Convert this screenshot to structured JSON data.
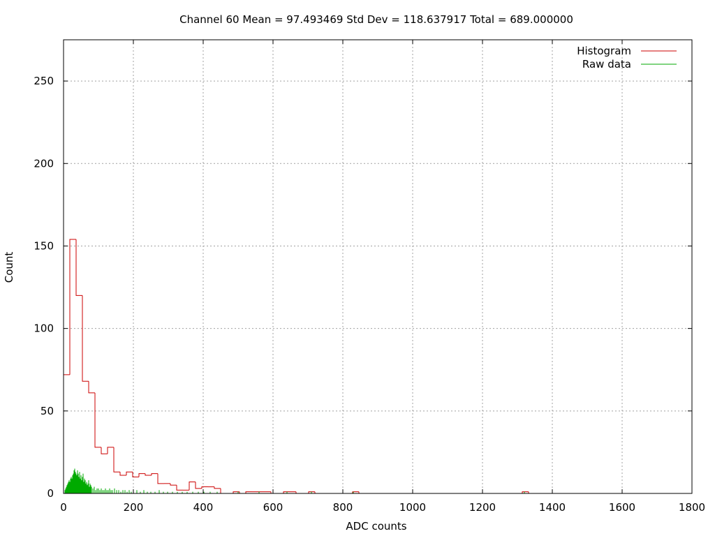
{
  "chart_data": {
    "type": "line",
    "title": "Channel 60  Mean = 97.493469  Std Dev = 118.637917  Total = 689.000000",
    "xlabel": "ADC counts",
    "ylabel": "Count",
    "xlim": [
      0,
      1800
    ],
    "ylim": [
      0,
      275
    ],
    "xticks": [
      0,
      200,
      400,
      600,
      800,
      1000,
      1200,
      1400,
      1600,
      1800
    ],
    "yticks": [
      0,
      50,
      100,
      150,
      200,
      250
    ],
    "grid": true,
    "legend_position": "top-right",
    "series": [
      {
        "name": "Histogram",
        "color": "#cc0000",
        "style": "step",
        "bin_width": 18,
        "bin_starts": [
          0,
          18,
          36,
          54,
          72,
          90,
          108,
          126,
          144,
          162,
          180,
          198,
          216,
          234,
          252,
          270,
          288,
          306,
          324,
          342,
          360,
          378,
          396,
          414,
          432,
          450,
          468,
          486,
          504,
          522,
          540,
          558,
          576,
          594,
          612,
          630,
          648,
          666,
          684,
          702,
          720,
          738,
          756,
          774,
          792,
          810,
          828,
          846,
          1314,
          1332
        ],
        "values": [
          72,
          154,
          120,
          68,
          61,
          28,
          24,
          28,
          13,
          11,
          13,
          10,
          12,
          11,
          12,
          6,
          6,
          5,
          2,
          2,
          7,
          3,
          4,
          4,
          3,
          0,
          0,
          1,
          0,
          1,
          1,
          1,
          1,
          0,
          0,
          1,
          1,
          0,
          0,
          1,
          0,
          0,
          0,
          0,
          0,
          0,
          1,
          0,
          1,
          0
        ]
      },
      {
        "name": "Raw data",
        "color": "#00aa00",
        "style": "impulses",
        "x": [
          4,
          6,
          8,
          10,
          12,
          14,
          16,
          18,
          20,
          22,
          24,
          26,
          28,
          30,
          32,
          34,
          36,
          38,
          40,
          42,
          44,
          46,
          48,
          50,
          52,
          54,
          56,
          58,
          60,
          62,
          64,
          66,
          68,
          70,
          72,
          74,
          76,
          78,
          80,
          84,
          88,
          92,
          96,
          100,
          104,
          108,
          112,
          116,
          120,
          124,
          128,
          132,
          136,
          140,
          146,
          152,
          158,
          164,
          170,
          176,
          182,
          188,
          194,
          200,
          210,
          220,
          230,
          240,
          250,
          262,
          274,
          286,
          298,
          312,
          326,
          340,
          354,
          370,
          386,
          402,
          420,
          440,
          500,
          560,
          640,
          710,
          830,
          1320
        ],
        "y": [
          2,
          3,
          4,
          5,
          6,
          7,
          8,
          7,
          9,
          10,
          9,
          11,
          12,
          14,
          15,
          13,
          12,
          11,
          14,
          12,
          10,
          13,
          9,
          11,
          8,
          10,
          12,
          7,
          9,
          8,
          6,
          7,
          5,
          6,
          8,
          4,
          6,
          5,
          4,
          3,
          4,
          2,
          3,
          3,
          2,
          3,
          2,
          2,
          3,
          2,
          2,
          3,
          2,
          2,
          3,
          2,
          2,
          1,
          2,
          2,
          1,
          2,
          1,
          2,
          2,
          1,
          2,
          1,
          1,
          1,
          2,
          1,
          1,
          1,
          1,
          1,
          1,
          1,
          1,
          1,
          1,
          1,
          1,
          1,
          1,
          1,
          1,
          1
        ]
      }
    ]
  }
}
